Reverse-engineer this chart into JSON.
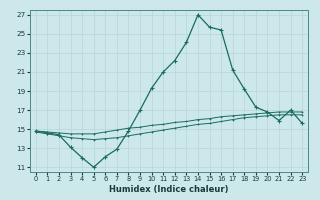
{
  "title": "",
  "xlabel": "Humidex (Indice chaleur)",
  "xlim": [
    -0.5,
    23.5
  ],
  "ylim": [
    10.5,
    27.5
  ],
  "xticks": [
    0,
    1,
    2,
    3,
    4,
    5,
    6,
    7,
    8,
    9,
    10,
    11,
    12,
    13,
    14,
    15,
    16,
    17,
    18,
    19,
    20,
    21,
    22,
    23
  ],
  "yticks": [
    11,
    13,
    15,
    17,
    19,
    21,
    23,
    25,
    27
  ],
  "background_color": "#cce8ea",
  "line_color": "#1a6b60",
  "grid_color": "#b8d4d6",
  "line1_y": [
    14.8,
    14.6,
    14.4,
    13.1,
    12.0,
    11.0,
    12.1,
    12.9,
    14.8,
    17.0,
    19.3,
    21.0,
    22.2,
    24.1,
    27.0,
    25.7,
    25.4,
    21.2,
    19.2,
    17.3,
    16.8,
    15.9,
    17.0,
    15.6
  ],
  "line2_y": [
    14.8,
    14.7,
    14.6,
    14.5,
    14.5,
    14.5,
    14.7,
    14.9,
    15.1,
    15.2,
    15.4,
    15.5,
    15.7,
    15.8,
    16.0,
    16.1,
    16.3,
    16.4,
    16.5,
    16.6,
    16.7,
    16.8,
    16.8,
    16.8
  ],
  "line3_y": [
    14.7,
    14.5,
    14.3,
    14.1,
    14.0,
    13.9,
    14.0,
    14.1,
    14.3,
    14.5,
    14.7,
    14.9,
    15.1,
    15.3,
    15.5,
    15.6,
    15.8,
    16.0,
    16.2,
    16.3,
    16.4,
    16.5,
    16.5,
    16.5
  ]
}
